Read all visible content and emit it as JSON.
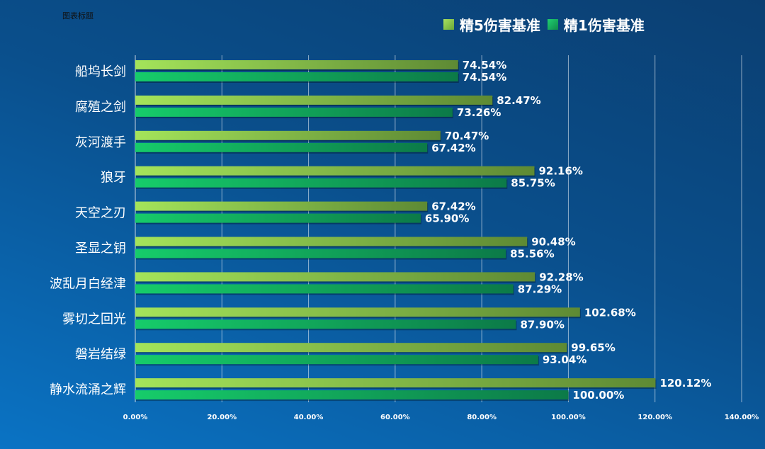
{
  "chart_data": {
    "type": "bar",
    "orientation": "horizontal",
    "title": "图表标题",
    "categories": [
      "船坞长剑",
      "腐殖之剑",
      "灰河渡手",
      "狼牙",
      "天空之刃",
      "圣显之钥",
      "波乱月白经津",
      "雾切之回光",
      "磐岩结绿",
      "静水流涌之辉"
    ],
    "series": [
      {
        "name": "精5伤害基准",
        "color": "#8fd14f",
        "values": [
          74.54,
          82.47,
          70.47,
          92.16,
          67.42,
          90.48,
          92.28,
          102.68,
          99.65,
          120.12
        ]
      },
      {
        "name": "精1伤害基准",
        "color": "#12c065",
        "values": [
          74.54,
          73.26,
          67.42,
          85.75,
          65.9,
          85.56,
          87.29,
          87.9,
          93.04,
          100.0
        ]
      }
    ],
    "xlim": [
      0,
      140
    ],
    "xticks": [
      "0.00%",
      "20.00%",
      "40.00%",
      "60.00%",
      "80.00%",
      "100.00%",
      "120.00%",
      "140.00%"
    ],
    "grid": true,
    "legend": "top-right"
  }
}
